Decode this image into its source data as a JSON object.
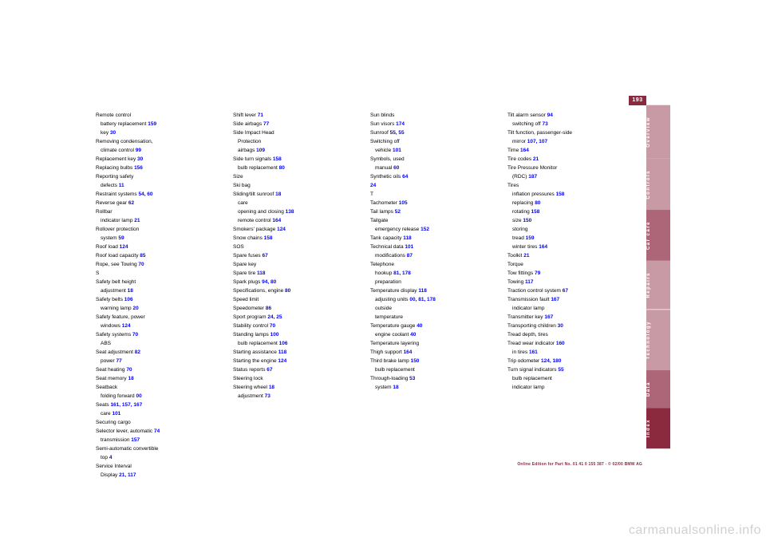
{
  "page_number": "193",
  "tabs": [
    {
      "label": "Overview",
      "cls": "light"
    },
    {
      "label": "Controls",
      "cls": "light"
    },
    {
      "label": "Car care",
      "cls": "dark"
    },
    {
      "label": "Repairs",
      "cls": "light"
    },
    {
      "label": "Technology",
      "cls": "light"
    },
    {
      "label": "Data",
      "cls": "dark"
    },
    {
      "label": "Index",
      "cls": "index"
    }
  ],
  "footer": "Online Edition for Part No. 01 41 0 155 387 - © 02/00 BMW AG",
  "watermark": "carmanualsonline.info",
  "columns": [
    [
      {
        "t": "Remote control",
        "n": ""
      },
      {
        "t": "battery replacement",
        "n": "159",
        "sub": 1
      },
      {
        "t": "key",
        "n": "30",
        "sub": 1
      },
      {
        "t": "Removing condensation,",
        "n": ""
      },
      {
        "t": "climate control",
        "n": "99",
        "sub": 1
      },
      {
        "t": "Replacement key",
        "n": "30"
      },
      {
        "t": "Replacing bulbs",
        "n": "156"
      },
      {
        "t": "Reporting safety",
        "n": ""
      },
      {
        "t": "defects",
        "n": "11",
        "sub": 1
      },
      {
        "t": "Restraint systems",
        "n": "54, 60"
      },
      {
        "t": "Reverse gear",
        "n": "62"
      },
      {
        "t": "Rollbar",
        "n": ""
      },
      {
        "t": "indicator lamp",
        "n": "21",
        "sub": 1
      },
      {
        "t": "Rollover protection",
        "n": ""
      },
      {
        "t": "system",
        "n": "59",
        "sub": 1
      },
      {
        "t": "Roof load",
        "n": "124"
      },
      {
        "t": "Roof load capacity",
        "n": "85"
      },
      {
        "t": "Rope, see Towing",
        "n": "70"
      },
      {
        "t": ""
      },
      {
        "t": "S"
      },
      {
        "t": "Safety belt height",
        "n": ""
      },
      {
        "t": "adjustment",
        "n": "18",
        "sub": 1
      },
      {
        "t": "Safety belts",
        "n": "106"
      },
      {
        "t": "warning lamp",
        "n": "20",
        "sub": 1
      },
      {
        "t": "Safety feature, power",
        "n": ""
      },
      {
        "t": "windows",
        "n": "124",
        "sub": 1
      },
      {
        "t": "Safety systems",
        "n": "70"
      },
      {
        "t": "ABS",
        "n": "",
        "sub": 1
      },
      {
        "t": "Seat adjustment",
        "n": "82"
      },
      {
        "t": "power",
        "n": "77",
        "sub": 1
      },
      {
        "t": "Seat heating",
        "n": "70"
      },
      {
        "t": "Seat memory",
        "n": "18"
      },
      {
        "t": "Seatback",
        "n": ""
      },
      {
        "t": "folding forward",
        "n": "00",
        "sub": 1
      },
      {
        "t": "Seats",
        "n": "161, 157, 167"
      },
      {
        "t": "care",
        "n": "101",
        "sub": 1
      },
      {
        "t": "Securing cargo",
        "n": ""
      },
      {
        "t": "Selector lever, automatic",
        "n": "74"
      },
      {
        "t": "transmission",
        "n": "157",
        "sub": 1
      },
      {
        "t": "Semi-automatic convertible",
        "n": ""
      },
      {
        "t": "top",
        "n": "4",
        "sub": 1
      },
      {
        "t": "Service Interval",
        "n": ""
      },
      {
        "t": "Display",
        "n": "21, 117",
        "sub": 1
      }
    ],
    [
      {
        "t": "Shift lever",
        "n": "71"
      },
      {
        "t": "Side airbags",
        "n": "77"
      },
      {
        "t": "Side Impact Head",
        "n": ""
      },
      {
        "t": "Protection",
        "n": "",
        "sub": 1
      },
      {
        "t": "airbags",
        "n": "109",
        "sub": 1
      },
      {
        "t": "Side turn signals",
        "n": "158"
      },
      {
        "t": "bulb replacement",
        "n": "80",
        "sub": 1
      },
      {
        "t": "Size",
        "n": ""
      },
      {
        "t": "Ski bag",
        "n": ""
      },
      {
        "t": "Sliding/tilt sunroof",
        "n": "18"
      },
      {
        "t": "care",
        "n": "",
        "sub": 1
      },
      {
        "t": "opening and closing",
        "n": "138",
        "sub": 1
      },
      {
        "t": "remote control",
        "n": "164",
        "sub": 1
      },
      {
        "t": "Smokers' package",
        "n": "124"
      },
      {
        "t": "Snow chains",
        "n": "158"
      },
      {
        "t": "SOS",
        "n": ""
      },
      {
        "t": "Spare fuses",
        "n": "67"
      },
      {
        "t": "Spare key",
        "n": ""
      },
      {
        "t": "Spare tire",
        "n": "118"
      },
      {
        "t": "Spark plugs",
        "n": "94, 80"
      },
      {
        "t": "Specifications, engine",
        "n": "80"
      },
      {
        "t": "Speed limit",
        "n": ""
      },
      {
        "t": "Speedometer",
        "n": "86"
      },
      {
        "t": "Sport program",
        "n": "24, 25"
      },
      {
        "t": "Stability control",
        "n": "70"
      },
      {
        "t": "Standing lamps",
        "n": "100"
      },
      {
        "t": "bulb replacement",
        "n": "106",
        "sub": 1
      },
      {
        "t": "Starting assistance",
        "n": "118"
      },
      {
        "t": "Starting the engine",
        "n": "124"
      },
      {
        "t": "Status reports",
        "n": "67"
      },
      {
        "t": "Steering lock",
        "n": ""
      },
      {
        "t": "Steering wheel",
        "n": "18"
      },
      {
        "t": "adjustment",
        "n": "73",
        "sub": 1
      }
    ],
    [
      {
        "t": "Sun blinds",
        "n": ""
      },
      {
        "t": "Sun visors",
        "n": "174"
      },
      {
        "t": "Sunroof",
        "n": "55, 55"
      },
      {
        "t": "Switching off",
        "n": ""
      },
      {
        "t": "vehicle",
        "n": "101",
        "sub": 1
      },
      {
        "t": "Symbols, used",
        "n": ""
      },
      {
        "t": "manual",
        "n": "60",
        "sub": 1
      },
      {
        "t": "Synthetic oils",
        "n": "64"
      },
      {
        "t": "",
        "n": "24"
      },
      {
        "t": "T"
      },
      {
        "t": "Tachometer",
        "n": "105"
      },
      {
        "t": "Tail lamps",
        "n": "52"
      },
      {
        "t": "Tailgate",
        "n": ""
      },
      {
        "t": "emergency release",
        "n": "152",
        "sub": 1
      },
      {
        "t": "Tank capacity",
        "n": "118"
      },
      {
        "t": "Technical data",
        "n": "101"
      },
      {
        "t": "modifications",
        "n": "87",
        "sub": 1
      },
      {
        "t": "Telephone",
        "n": ""
      },
      {
        "t": "hookup",
        "n": "81, 178",
        "sub": 1
      },
      {
        "t": "preparation",
        "n": "",
        "sub": 1
      },
      {
        "t": "Temperature display",
        "n": "118"
      },
      {
        "t": "adjusting units",
        "n": "00, 81, 178",
        "sub": 1
      },
      {
        "t": "outside",
        "n": "",
        "sub": 1
      },
      {
        "t": "temperature",
        "n": "",
        "sub": 1
      },
      {
        "t": "Temperature gauge",
        "n": "40"
      },
      {
        "t": "engine coolant",
        "n": "40",
        "sub": 1
      },
      {
        "t": "Temperature layering",
        "n": ""
      },
      {
        "t": "Thigh support",
        "n": "164"
      },
      {
        "t": "Third brake lamp",
        "n": "150"
      },
      {
        "t": "bulb replacement",
        "n": "",
        "sub": 1
      },
      {
        "t": "Through-loading",
        "n": "53"
      },
      {
        "t": "system",
        "n": "18",
        "sub": 1
      }
    ],
    [
      {
        "t": "Tilt alarm sensor",
        "n": "94"
      },
      {
        "t": "switching off",
        "n": "73",
        "sub": 1
      },
      {
        "t": "Tilt function, passenger-side",
        "n": ""
      },
      {
        "t": "mirror",
        "n": "107, 107",
        "sub": 1
      },
      {
        "t": "Time",
        "n": "164"
      },
      {
        "t": "Tire codes",
        "n": "21"
      },
      {
        "t": "Tire Pressure Monitor",
        "n": ""
      },
      {
        "t": "(RDC)",
        "n": "187",
        "sub": 1
      },
      {
        "t": "Tires",
        "n": ""
      },
      {
        "t": "inflation pressures",
        "n": "158",
        "sub": 1
      },
      {
        "t": "replacing",
        "n": "80",
        "sub": 1
      },
      {
        "t": "rotating",
        "n": "158",
        "sub": 1
      },
      {
        "t": "size",
        "n": "150",
        "sub": 1
      },
      {
        "t": "storing",
        "n": "",
        "sub": 1
      },
      {
        "t": "tread",
        "n": "159",
        "sub": 1
      },
      {
        "t": "winter tires",
        "n": "164",
        "sub": 1
      },
      {
        "t": "Toolkit",
        "n": "21"
      },
      {
        "t": "Torque",
        "n": ""
      },
      {
        "t": "Tow fittings",
        "n": "79"
      },
      {
        "t": "Towing",
        "n": "117"
      },
      {
        "t": "Traction control system",
        "n": "67"
      },
      {
        "t": "Transmission fault",
        "n": "167"
      },
      {
        "t": "indicator lamp",
        "n": "",
        "sub": 1
      },
      {
        "t": "Transmitter key",
        "n": "167"
      },
      {
        "t": "Transporting children",
        "n": "30"
      },
      {
        "t": "Tread depth, tires",
        "n": ""
      },
      {
        "t": "Tread wear indicator",
        "n": "160"
      },
      {
        "t": "in tires",
        "n": "161",
        "sub": 1
      },
      {
        "t": "Trip odometer",
        "n": "124, 180"
      },
      {
        "t": "Turn signal indicators",
        "n": "55"
      },
      {
        "t": "bulb replacement",
        "n": "",
        "sub": 1
      },
      {
        "t": "indicator lamp",
        "n": "",
        "sub": 1
      }
    ]
  ]
}
